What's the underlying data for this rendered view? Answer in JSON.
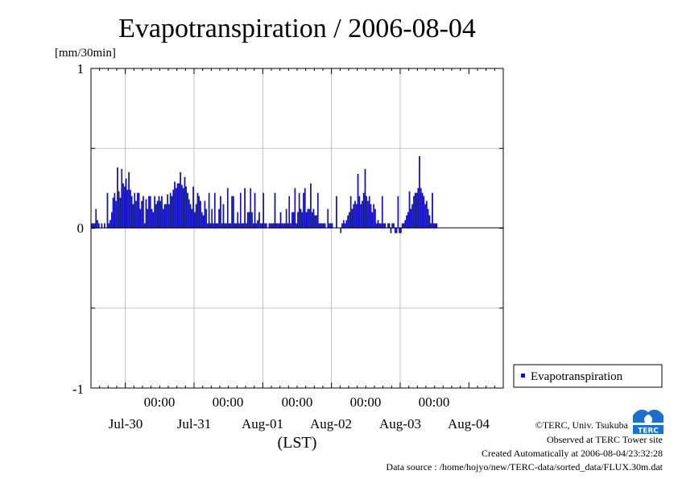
{
  "chart_data": {
    "type": "bar",
    "title": "Evapotranspiration / 2006-08-04",
    "ylabel": "[mm/30min]",
    "xlabel": "(LST)",
    "ylim": [
      -1,
      1
    ],
    "y_ticks": [
      "1",
      "0",
      "-1"
    ],
    "x_time_labels": [
      "00:00",
      "00:00",
      "00:00",
      "00:00",
      "00:00"
    ],
    "x_date_labels": [
      "Jul-30",
      "Jul-31",
      "Aug-01",
      "Aug-02",
      "Aug-03",
      "Aug-04"
    ],
    "x_start": "2006-07-29T12:00",
    "interval_minutes": 30,
    "bar_color": "#1010d0",
    "legend": "Evapotranspiration",
    "legend_position": "right, below plot middle",
    "grid": true,
    "series": [
      {
        "name": "Evapotranspiration",
        "values": [
          0.03,
          0.03,
          0.03,
          0.12,
          0.05,
          0.03,
          0,
          0.03,
          0,
          0.03,
          0,
          0.22,
          0.03,
          0.05,
          0.1,
          0.19,
          0.22,
          0.17,
          0.38,
          0.23,
          0.19,
          0.37,
          0.28,
          0.26,
          0.31,
          0.24,
          0.35,
          0.24,
          0.2,
          0.15,
          0.22,
          0.17,
          0.22,
          0.22,
          0.12,
          0.17,
          0.2,
          0.03,
          0.18,
          0.12,
          0.2,
          0.2,
          0.12,
          0.1,
          0.2,
          0.15,
          0.17,
          0.2,
          0.17,
          0.2,
          0.12,
          0.15,
          0.15,
          0.21,
          0.15,
          0.22,
          0.2,
          0.24,
          0.29,
          0.25,
          0.28,
          0.28,
          0.35,
          0.27,
          0.25,
          0.32,
          0.26,
          0.22,
          0.18,
          0.15,
          0.12,
          0.26,
          0.1,
          0.15,
          0.22,
          0.2,
          0.17,
          0.1,
          0.08,
          0.17,
          0.12,
          0.03,
          0.22,
          0.03,
          0.12,
          0.03,
          0.22,
          0.03,
          0.03,
          0.12,
          0.2,
          0.03,
          0.15,
          0.03,
          0.03,
          0.25,
          0.03,
          0.03,
          0.2,
          0.2,
          0.03,
          0.03,
          0.1,
          0.03,
          0.22,
          0.03,
          0.03,
          0.25,
          0.03,
          0.1,
          0.1,
          0.25,
          0.1,
          0.03,
          0.22,
          0.03,
          0.05,
          0.1,
          0.03,
          0.03,
          0.22,
          0.03,
          0.03,
          0,
          0.03,
          0.03,
          0.03,
          0.03,
          0.22,
          0.03,
          0.03,
          0.03,
          0.1,
          0.03,
          0.03,
          0.03,
          0.12,
          0.03,
          0.2,
          0.03,
          0.1,
          0.1,
          0.25,
          0.03,
          0.1,
          0.22,
          0.12,
          0.1,
          0.22,
          0.25,
          0.1,
          0.12,
          0.12,
          0.28,
          0.1,
          0.12,
          0.08,
          0.08,
          0.22,
          0.03,
          0.03,
          0.03,
          0.03,
          0.03,
          0,
          0.12,
          0.03,
          0.03,
          0.03,
          0,
          0,
          0.2,
          0,
          0,
          -0.03,
          0.03,
          0.05,
          0.03,
          0.05,
          0.08,
          0.1,
          0.2,
          0.12,
          0.15,
          0.17,
          0.15,
          0.34,
          0.2,
          0.15,
          0.17,
          0.22,
          0.37,
          0.2,
          0.17,
          0.2,
          0.15,
          0.1,
          0.15,
          0.12,
          0.03,
          0.05,
          0.03,
          0.03,
          0.2,
          0.03,
          0.03,
          0,
          0.03,
          0.03,
          -0.03,
          0.03,
          0.03,
          -0.03,
          -0.03,
          0.2,
          -0.03,
          -0.03,
          0.03,
          0.03,
          0.05,
          0.08,
          0.1,
          0.23,
          0.12,
          0.15,
          0.2,
          0.22,
          0.22,
          0.25,
          0.45,
          0.25,
          0.22,
          0.2,
          0.15,
          0.17,
          0.12,
          0.08,
          0.03,
          0.22,
          0.03,
          0.03,
          0.03
        ]
      }
    ]
  },
  "footer": {
    "copyright": "©TERC, Univ. Tsukuba",
    "observed": "Observed at TERC Tower site",
    "created": "Created Automatically at 2006-08-04/23:32:28",
    "source": "Data source : /home/hojyo/new/TERC-data/sorted_data/FLUX.30m.dat",
    "logo_text": "TERC"
  }
}
